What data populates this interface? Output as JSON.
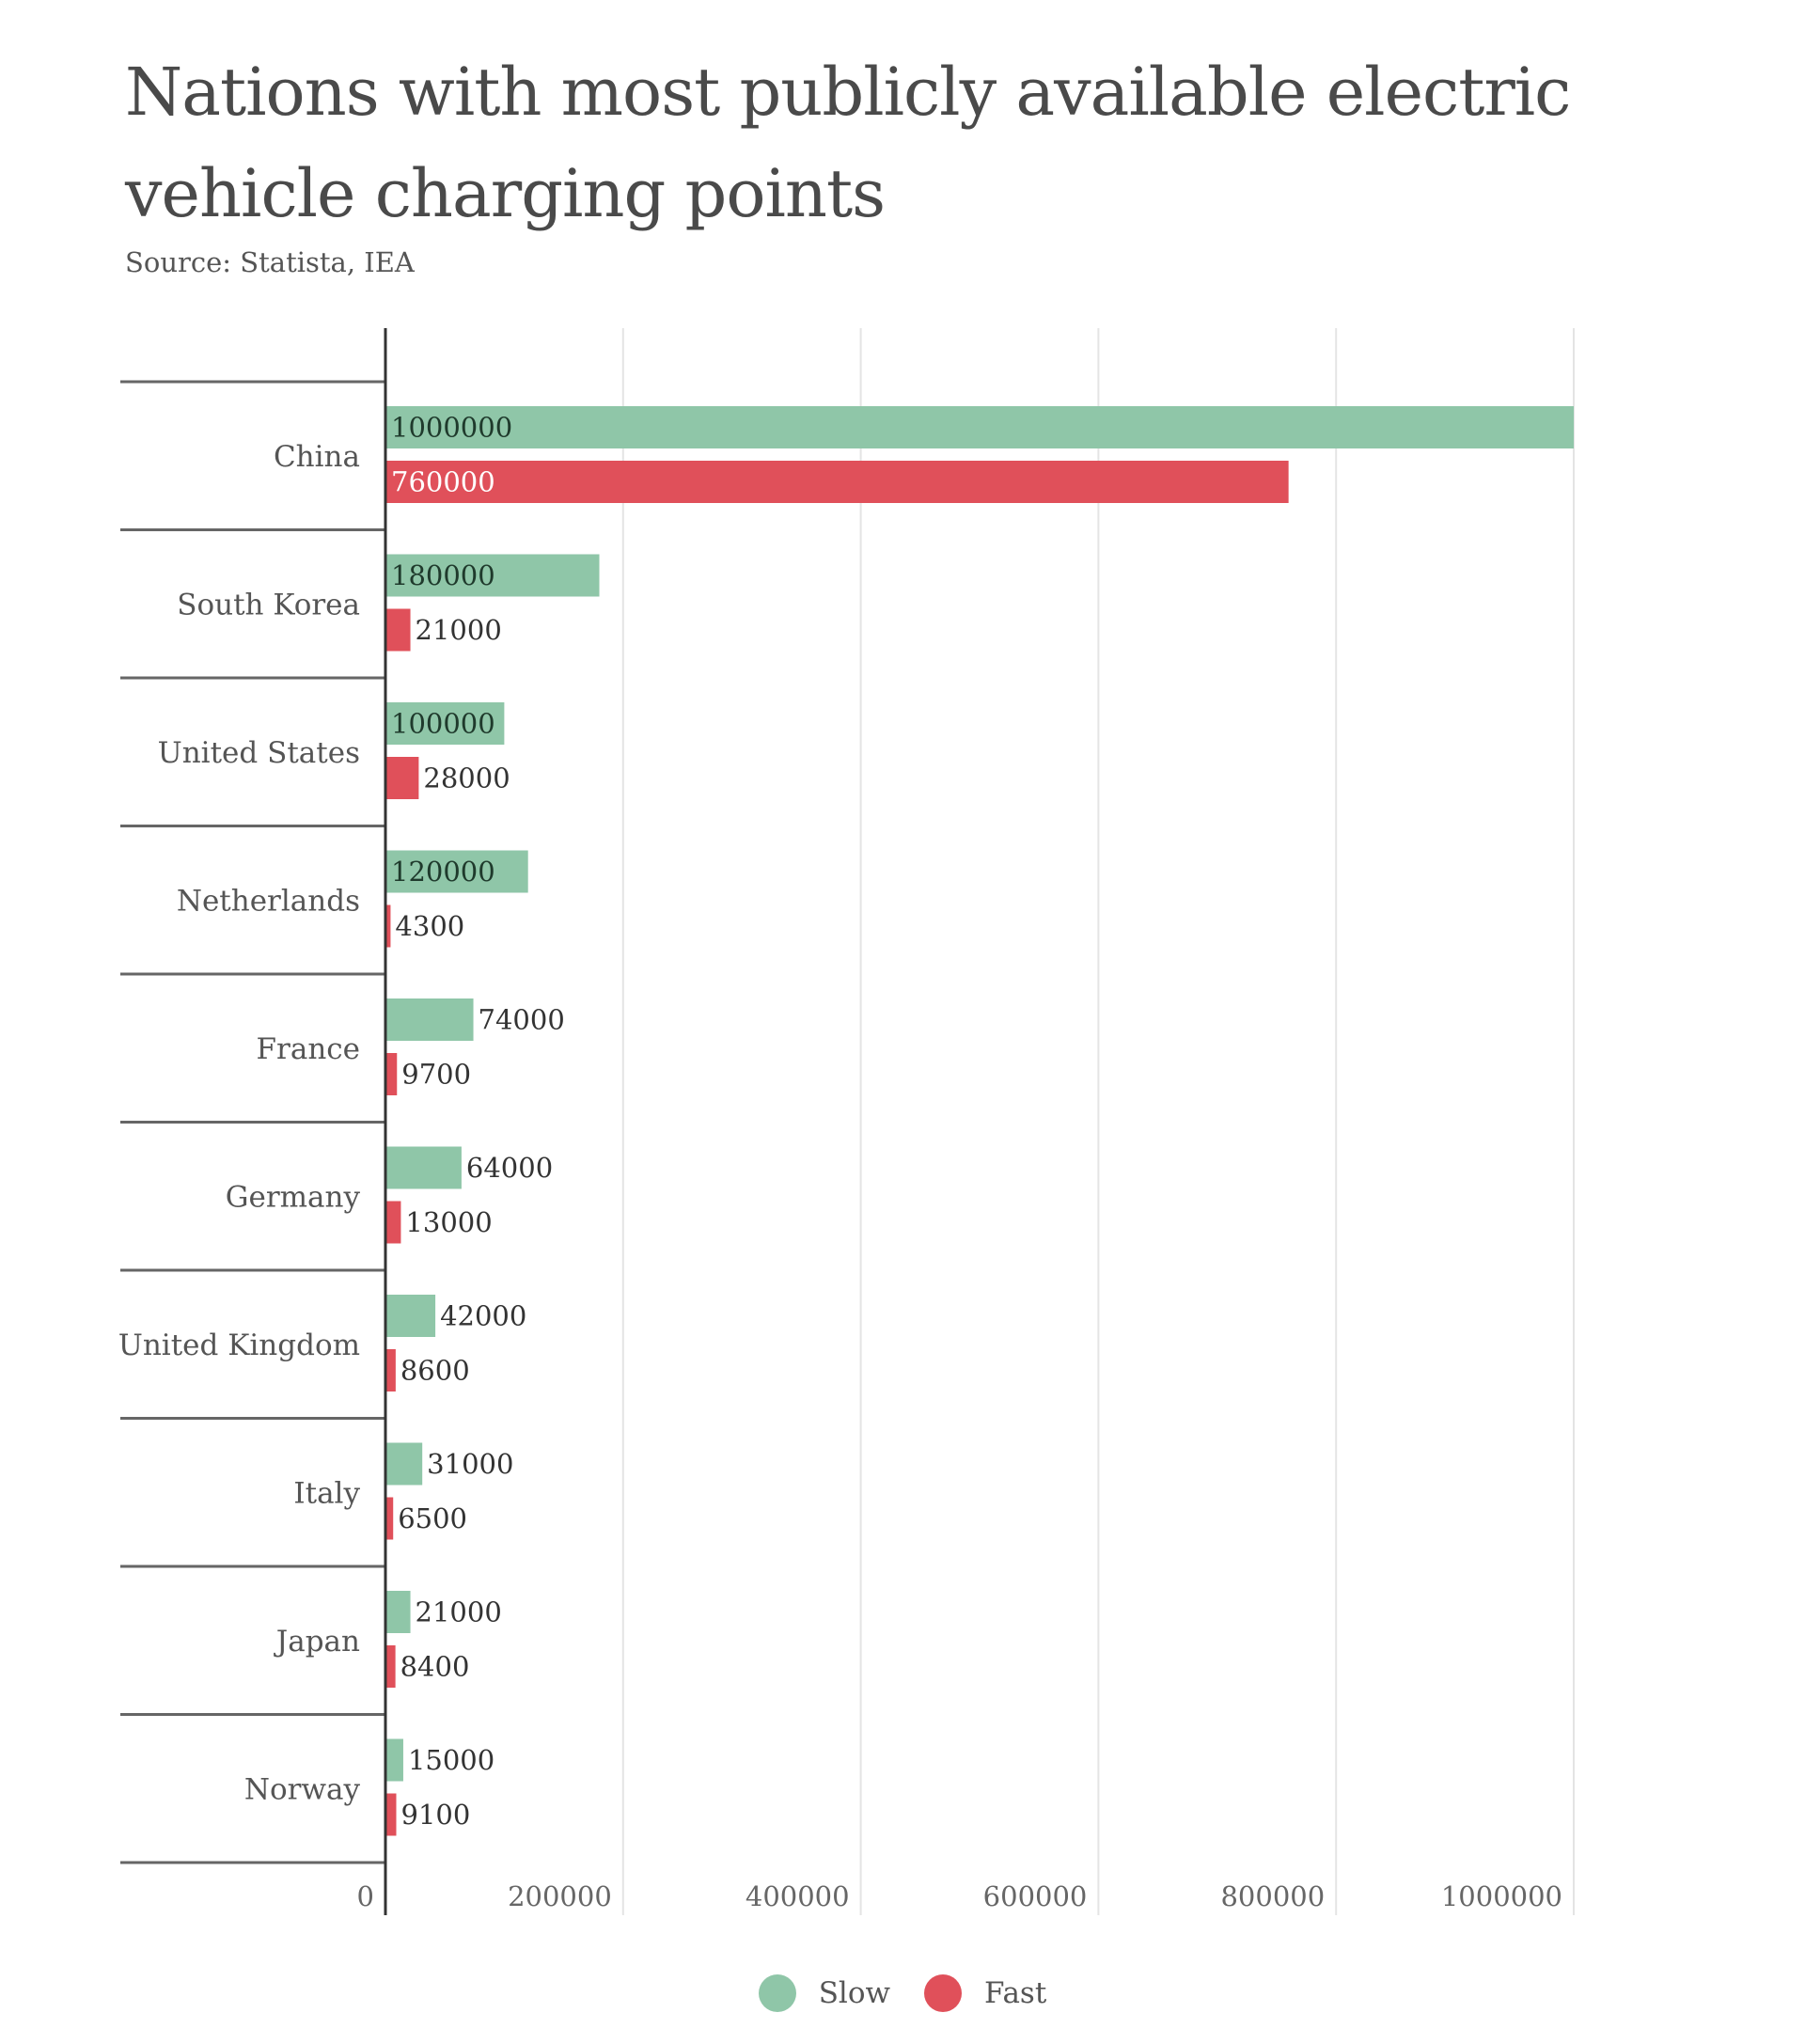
{
  "chart_data": {
    "type": "bar",
    "orientation": "horizontal",
    "title": "Nations with most publicly available electric vehicle charging points",
    "source": "Source: Statista, IEA",
    "categories": [
      "China",
      "South Korea",
      "United States",
      "Netherlands",
      "France",
      "Germany",
      "United Kingdom",
      "Italy",
      "Japan",
      "Norway"
    ],
    "series": [
      {
        "name": "Slow",
        "color": "#8fc6a8",
        "values": [
          1000000,
          180000,
          100000,
          120000,
          74000,
          64000,
          42000,
          31000,
          21000,
          15000
        ]
      },
      {
        "name": "Fast",
        "color": "#e0505a",
        "values": [
          760000,
          21000,
          28000,
          4300,
          9700,
          13000,
          8600,
          6500,
          8400,
          9100
        ]
      }
    ],
    "xlim": [
      0,
      1000000
    ],
    "xticks": [
      "0",
      "200000",
      "400000",
      "600000",
      "800000",
      "1000000"
    ],
    "grid": true,
    "legend_position": "bottom-center"
  }
}
